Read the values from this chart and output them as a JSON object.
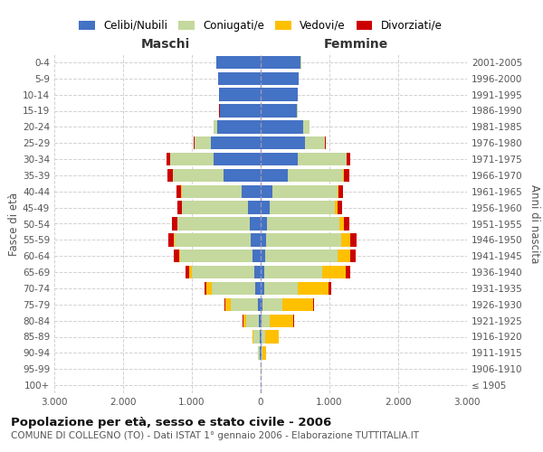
{
  "age_groups": [
    "100+",
    "95-99",
    "90-94",
    "85-89",
    "80-84",
    "75-79",
    "70-74",
    "65-69",
    "60-64",
    "55-59",
    "50-54",
    "45-49",
    "40-44",
    "35-39",
    "30-34",
    "25-29",
    "20-24",
    "15-19",
    "10-14",
    "5-9",
    "0-4"
  ],
  "birth_years": [
    "≤ 1905",
    "1906-1910",
    "1911-1915",
    "1916-1920",
    "1921-1925",
    "1926-1930",
    "1931-1935",
    "1936-1940",
    "1941-1945",
    "1946-1950",
    "1951-1955",
    "1956-1960",
    "1961-1965",
    "1966-1970",
    "1971-1975",
    "1976-1980",
    "1981-1985",
    "1986-1990",
    "1991-1995",
    "1996-2000",
    "2001-2005"
  ],
  "male_celibi": [
    2,
    2,
    8,
    15,
    25,
    45,
    75,
    95,
    120,
    150,
    155,
    190,
    270,
    540,
    680,
    720,
    630,
    590,
    600,
    620,
    645
  ],
  "male_coniugati": [
    2,
    4,
    25,
    90,
    190,
    390,
    640,
    900,
    1050,
    1100,
    1050,
    950,
    880,
    740,
    640,
    240,
    50,
    8,
    5,
    2,
    2
  ],
  "male_vedovi": [
    0,
    0,
    4,
    15,
    40,
    75,
    75,
    38,
    20,
    10,
    5,
    5,
    3,
    2,
    2,
    2,
    1,
    0,
    0,
    0,
    0
  ],
  "male_divorziati": [
    0,
    0,
    0,
    2,
    5,
    10,
    28,
    58,
    78,
    88,
    78,
    68,
    68,
    68,
    48,
    9,
    5,
    2,
    1,
    0,
    0
  ],
  "female_nubili": [
    2,
    3,
    8,
    12,
    18,
    28,
    48,
    58,
    68,
    78,
    98,
    125,
    175,
    390,
    540,
    640,
    615,
    525,
    535,
    555,
    585
  ],
  "female_coniugate": [
    2,
    4,
    18,
    55,
    115,
    290,
    490,
    840,
    1045,
    1095,
    1045,
    960,
    940,
    810,
    710,
    290,
    95,
    18,
    8,
    4,
    2
  ],
  "female_vedove": [
    2,
    4,
    55,
    195,
    345,
    445,
    445,
    345,
    195,
    125,
    68,
    38,
    18,
    8,
    4,
    2,
    1,
    1,
    0,
    0,
    0
  ],
  "female_divorziate": [
    0,
    0,
    1,
    4,
    9,
    18,
    38,
    58,
    78,
    98,
    78,
    58,
    68,
    78,
    48,
    9,
    4,
    2,
    1,
    0,
    0
  ],
  "colors_celibi": "#4472c4",
  "colors_coniugati": "#c5d89d",
  "colors_vedovi": "#ffc000",
  "colors_divorziati": "#cc0000",
  "xlim": 3000,
  "title": "Popolazione per età, sesso e stato civile - 2006",
  "subtitle": "COMUNE DI COLLEGNO (TO) - Dati ISTAT 1° gennaio 2006 - Elaborazione TUTTITALIA.IT",
  "ylabel_left": "Fasce di età",
  "ylabel_right": "Anni di nascita",
  "label_maschi": "Maschi",
  "label_femmine": "Femmine",
  "legend_labels": [
    "Celibi/Nubili",
    "Coniugati/e",
    "Vedovi/e",
    "Divorziati/e"
  ],
  "bg_color": "#ffffff",
  "grid_color": "#cccccc"
}
